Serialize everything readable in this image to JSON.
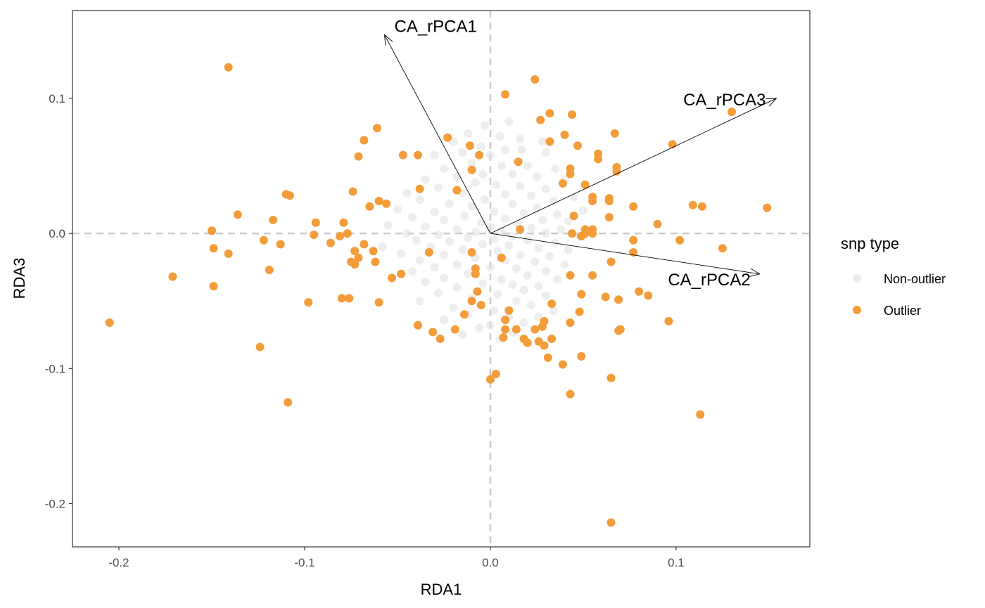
{
  "chart_data": {
    "type": "scatter",
    "xlabel": "RDA1",
    "ylabel": "RDA3",
    "xlim": [
      -0.225,
      0.172
    ],
    "ylim": [
      -0.232,
      0.165
    ],
    "x_ticks": [
      {
        "value": -0.2,
        "label": "-0.2"
      },
      {
        "value": -0.1,
        "label": "-0.1"
      },
      {
        "value": 0.0,
        "label": "0.0"
      },
      {
        "value": 0.1,
        "label": "0.1"
      }
    ],
    "y_ticks": [
      {
        "value": 0.1,
        "label": "0.1"
      },
      {
        "value": 0.0,
        "label": "0.0"
      },
      {
        "value": -0.1,
        "label": "-0.1"
      },
      {
        "value": -0.2,
        "label": "-0.2"
      }
    ],
    "grid": false,
    "reference_lines": {
      "x": 0,
      "y": 0,
      "style": "dashed",
      "color": "#cccccc"
    },
    "legend": {
      "title": "snp type",
      "position": "right",
      "entries": [
        {
          "label": "Non-outlier",
          "color": "#e0e0e0"
        },
        {
          "label": "Outlier",
          "color": "#f39c3a"
        }
      ]
    },
    "arrows": [
      {
        "name": "CA_rPCA1",
        "x": -0.057,
        "y": 0.147
      },
      {
        "name": "CA_rPCA2",
        "x": 0.145,
        "y": -0.03
      },
      {
        "name": "CA_rPCA3",
        "x": 0.154,
        "y": 0.1
      }
    ],
    "series": [
      {
        "name": "Outlier",
        "color": "#f39c3a",
        "points": [
          [
            -0.141,
            0.123
          ],
          [
            0.008,
            0.103
          ],
          [
            0.024,
            0.114
          ],
          [
            0.032,
            0.089
          ],
          [
            0.044,
            0.088
          ],
          [
            0.027,
            0.084
          ],
          [
            0.04,
            0.073
          ],
          [
            0.067,
            0.074
          ],
          [
            0.032,
            0.068
          ],
          [
            0.047,
            0.065
          ],
          [
            0.098,
            0.066
          ],
          [
            0.13,
            0.09
          ],
          [
            -0.061,
            0.078
          ],
          [
            -0.068,
            0.069
          ],
          [
            -0.023,
            0.071
          ],
          [
            -0.011,
            0.065
          ],
          [
            -0.006,
            0.058
          ],
          [
            -0.047,
            0.058
          ],
          [
            -0.039,
            0.058
          ],
          [
            -0.071,
            0.057
          ],
          [
            0.058,
            0.059
          ],
          [
            0.058,
            0.055
          ],
          [
            0.015,
            0.053
          ],
          [
            0.068,
            0.049
          ],
          [
            0.068,
            0.046
          ],
          [
            -0.01,
            0.047
          ],
          [
            0.043,
            0.048
          ],
          [
            0.043,
            0.044
          ],
          [
            0.039,
            0.037
          ],
          [
            0.051,
            0.036
          ],
          [
            -0.018,
            0.032
          ],
          [
            -0.038,
            0.033
          ],
          [
            -0.074,
            0.031
          ],
          [
            -0.11,
            0.029
          ],
          [
            -0.108,
            0.028
          ],
          [
            -0.06,
            0.024
          ],
          [
            -0.056,
            0.022
          ],
          [
            -0.065,
            0.02
          ],
          [
            0.055,
            0.027
          ],
          [
            0.055,
            0.024
          ],
          [
            0.064,
            0.026
          ],
          [
            0.064,
            0.024
          ],
          [
            0.077,
            0.02
          ],
          [
            0.109,
            0.021
          ],
          [
            0.114,
            0.02
          ],
          [
            0.149,
            0.019
          ],
          [
            -0.136,
            0.014
          ],
          [
            -0.117,
            0.01
          ],
          [
            -0.094,
            0.008
          ],
          [
            -0.079,
            0.008
          ],
          [
            0.045,
            0.013
          ],
          [
            0.064,
            0.012
          ],
          [
            0.09,
            0.007
          ],
          [
            -0.15,
            0.002
          ],
          [
            -0.095,
            -0.001
          ],
          [
            -0.081,
            -0.002
          ],
          [
            -0.077,
            0.0
          ],
          [
            0.016,
            0.003
          ],
          [
            0.044,
            0.0
          ],
          [
            0.051,
            0.003
          ],
          [
            0.051,
            0.0
          ],
          [
            0.055,
            0.003
          ],
          [
            0.055,
            0.0
          ],
          [
            0.049,
            -0.002
          ],
          [
            -0.122,
            -0.005
          ],
          [
            -0.113,
            -0.008
          ],
          [
            -0.086,
            -0.007
          ],
          [
            -0.068,
            -0.008
          ],
          [
            -0.149,
            -0.011
          ],
          [
            -0.141,
            -0.015
          ],
          [
            -0.073,
            -0.013
          ],
          [
            -0.063,
            -0.013
          ],
          [
            -0.033,
            -0.014
          ],
          [
            -0.01,
            -0.014
          ],
          [
            0.077,
            -0.005
          ],
          [
            0.077,
            -0.014
          ],
          [
            0.102,
            -0.005
          ],
          [
            0.125,
            -0.011
          ],
          [
            -0.075,
            -0.021
          ],
          [
            -0.071,
            -0.018
          ],
          [
            -0.073,
            -0.023
          ],
          [
            -0.062,
            -0.021
          ],
          [
            0.006,
            -0.018
          ],
          [
            0.065,
            -0.021
          ],
          [
            -0.171,
            -0.032
          ],
          [
            -0.149,
            -0.039
          ],
          [
            -0.119,
            -0.027
          ],
          [
            -0.053,
            -0.033
          ],
          [
            -0.048,
            -0.03
          ],
          [
            -0.008,
            -0.026
          ],
          [
            -0.008,
            -0.03
          ],
          [
            0.043,
            -0.031
          ],
          [
            0.055,
            -0.031
          ],
          [
            -0.007,
            -0.043
          ],
          [
            0.08,
            -0.043
          ],
          [
            0.085,
            -0.046
          ],
          [
            0.049,
            -0.045
          ],
          [
            0.062,
            -0.047
          ],
          [
            0.069,
            -0.049
          ],
          [
            -0.08,
            -0.048
          ],
          [
            -0.076,
            -0.048
          ],
          [
            -0.098,
            -0.051
          ],
          [
            -0.06,
            -0.051
          ],
          [
            -0.01,
            -0.05
          ],
          [
            -0.005,
            -0.053
          ],
          [
            0.033,
            -0.052
          ],
          [
            -0.014,
            -0.06
          ],
          [
            0.01,
            -0.057
          ],
          [
            0.048,
            -0.058
          ],
          [
            0.008,
            -0.064
          ],
          [
            0.029,
            -0.065
          ],
          [
            0.043,
            -0.066
          ],
          [
            0.096,
            -0.065
          ],
          [
            -0.205,
            -0.066
          ],
          [
            -0.039,
            -0.068
          ],
          [
            0.028,
            -0.069
          ],
          [
            0.008,
            -0.071
          ],
          [
            0.014,
            -0.071
          ],
          [
            0.024,
            -0.071
          ],
          [
            -0.019,
            -0.071
          ],
          [
            -0.031,
            -0.073
          ],
          [
            0.069,
            -0.072
          ],
          [
            0.07,
            -0.071
          ],
          [
            -0.027,
            -0.078
          ],
          [
            0.007,
            -0.077
          ],
          [
            0.018,
            -0.078
          ],
          [
            0.02,
            -0.081
          ],
          [
            0.026,
            -0.08
          ],
          [
            0.029,
            -0.083
          ],
          [
            0.033,
            -0.078
          ],
          [
            -0.124,
            -0.084
          ],
          [
            0.031,
            -0.092
          ],
          [
            0.049,
            -0.091
          ],
          [
            0.039,
            -0.097
          ],
          [
            0.003,
            -0.104
          ],
          [
            0.0,
            -0.108
          ],
          [
            0.065,
            -0.107
          ],
          [
            0.043,
            -0.119
          ],
          [
            -0.109,
            -0.125
          ],
          [
            0.113,
            -0.134
          ],
          [
            0.065,
            -0.214
          ]
        ]
      },
      {
        "name": "Non-outlier",
        "color": "#e0e0e0",
        "points": [
          [
            -0.003,
            0.08
          ],
          [
            0.01,
            0.083
          ],
          [
            -0.012,
            0.074
          ],
          [
            0.005,
            0.072
          ],
          [
            -0.02,
            0.068
          ],
          [
            0.016,
            0.07
          ],
          [
            0.028,
            0.068
          ],
          [
            -0.005,
            0.064
          ],
          [
            0.008,
            0.062
          ],
          [
            0.017,
            0.062
          ],
          [
            0.03,
            0.06
          ],
          [
            -0.015,
            0.06
          ],
          [
            -0.03,
            0.058
          ],
          [
            0.0,
            0.058
          ],
          [
            -0.01,
            0.052
          ],
          [
            0.006,
            0.05
          ],
          [
            0.02,
            0.05
          ],
          [
            -0.025,
            0.048
          ],
          [
            0.035,
            0.048
          ],
          [
            -0.004,
            0.044
          ],
          [
            0.012,
            0.044
          ],
          [
            0.025,
            0.042
          ],
          [
            -0.018,
            0.042
          ],
          [
            -0.035,
            0.04
          ],
          [
            0.04,
            0.04
          ],
          [
            -0.008,
            0.038
          ],
          [
            0.003,
            0.036
          ],
          [
            0.016,
            0.035
          ],
          [
            -0.028,
            0.034
          ],
          [
            0.03,
            0.033
          ],
          [
            -0.045,
            0.03
          ],
          [
            -0.015,
            0.03
          ],
          [
            0.008,
            0.029
          ],
          [
            0.022,
            0.028
          ],
          [
            0.045,
            0.027
          ],
          [
            -0.003,
            0.025
          ],
          [
            -0.038,
            0.025
          ],
          [
            0.034,
            0.024
          ],
          [
            -0.022,
            0.022
          ],
          [
            0.012,
            0.022
          ],
          [
            -0.01,
            0.02
          ],
          [
            0.025,
            0.019
          ],
          [
            -0.05,
            0.018
          ],
          [
            0.05,
            0.017
          ],
          [
            -0.03,
            0.016
          ],
          [
            0.002,
            0.016
          ],
          [
            0.018,
            0.015
          ],
          [
            0.036,
            0.014
          ],
          [
            -0.014,
            0.013
          ],
          [
            -0.042,
            0.012
          ],
          [
            0.008,
            0.011
          ],
          [
            -0.025,
            0.01
          ],
          [
            0.028,
            0.01
          ],
          [
            0.042,
            0.009
          ],
          [
            -0.005,
            0.008
          ],
          [
            0.015,
            0.007
          ],
          [
            -0.055,
            0.006
          ],
          [
            -0.035,
            0.005
          ],
          [
            0.0,
            0.005
          ],
          [
            0.022,
            0.004
          ],
          [
            0.038,
            0.003
          ],
          [
            -0.018,
            0.003
          ],
          [
            0.006,
            0.002
          ],
          [
            -0.008,
            0.001
          ],
          [
            -0.045,
            0.0
          ],
          [
            0.03,
            0.0
          ],
          [
            -0.028,
            -0.001
          ],
          [
            0.012,
            -0.002
          ],
          [
            0.048,
            -0.002
          ],
          [
            -0.012,
            -0.003
          ],
          [
            0.002,
            -0.004
          ],
          [
            -0.04,
            -0.005
          ],
          [
            0.02,
            -0.005
          ],
          [
            -0.022,
            -0.006
          ],
          [
            0.035,
            -0.007
          ],
          [
            -0.004,
            -0.008
          ],
          [
            0.01,
            -0.009
          ],
          [
            -0.058,
            -0.01
          ],
          [
            -0.032,
            -0.01
          ],
          [
            0.026,
            -0.011
          ],
          [
            -0.015,
            -0.012
          ],
          [
            0.042,
            -0.012
          ],
          [
            0.004,
            -0.013
          ],
          [
            -0.048,
            -0.015
          ],
          [
            -0.025,
            -0.016
          ],
          [
            0.016,
            -0.016
          ],
          [
            0.032,
            -0.017
          ],
          [
            -0.008,
            -0.018
          ],
          [
            -0.038,
            -0.02
          ],
          [
            0.008,
            -0.02
          ],
          [
            0.024,
            -0.021
          ],
          [
            -0.018,
            -0.023
          ],
          [
            0.04,
            -0.023
          ],
          [
            -0.03,
            -0.025
          ],
          [
            0.0,
            -0.025
          ],
          [
            0.014,
            -0.026
          ],
          [
            -0.042,
            -0.028
          ],
          [
            0.03,
            -0.028
          ],
          [
            -0.012,
            -0.03
          ],
          [
            0.02,
            -0.031
          ],
          [
            -0.025,
            -0.033
          ],
          [
            0.006,
            -0.034
          ],
          [
            0.036,
            -0.034
          ],
          [
            -0.035,
            -0.036
          ],
          [
            -0.004,
            -0.037
          ],
          [
            0.012,
            -0.038
          ],
          [
            0.026,
            -0.039
          ],
          [
            -0.018,
            -0.04
          ],
          [
            0.018,
            -0.042
          ],
          [
            -0.028,
            -0.044
          ],
          [
            0.004,
            -0.045
          ],
          [
            0.03,
            -0.046
          ],
          [
            -0.01,
            -0.048
          ],
          [
            -0.038,
            -0.05
          ],
          [
            0.014,
            -0.05
          ],
          [
            0.022,
            -0.053
          ],
          [
            -0.02,
            -0.055
          ],
          [
            0.002,
            -0.057
          ],
          [
            0.034,
            -0.057
          ],
          [
            -0.012,
            -0.06
          ],
          [
            0.01,
            -0.062
          ],
          [
            0.026,
            -0.062
          ],
          [
            -0.025,
            -0.064
          ],
          [
            0.018,
            -0.066
          ],
          [
            0.0,
            -0.068
          ],
          [
            -0.006,
            -0.07
          ],
          [
            0.012,
            -0.073
          ],
          [
            -0.015,
            -0.075
          ],
          [
            0.005,
            -0.078
          ]
        ]
      }
    ]
  }
}
